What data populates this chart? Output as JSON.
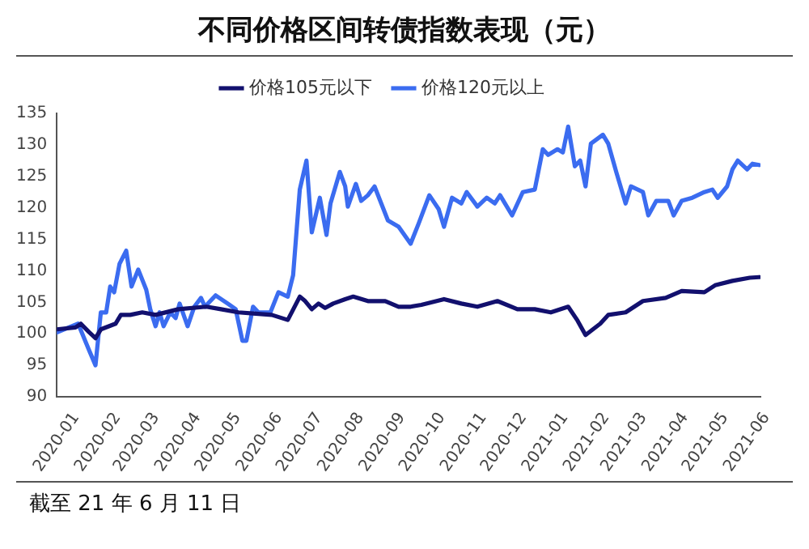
{
  "chart_data": {
    "type": "line",
    "title": "不同价格区间转债指数表现（元）",
    "annotations": [
      "截至 21 年 6 月 11 日"
    ],
    "xlim": [
      "2020-01-01",
      "2021-06-11"
    ],
    "xticks": [
      {
        "value": "2020-01-01",
        "label": "2020-01"
      },
      {
        "value": "2020-02-01",
        "label": "2020-02"
      },
      {
        "value": "2020-03-01",
        "label": "2020-03"
      },
      {
        "value": "2020-04-01",
        "label": "2020-04"
      },
      {
        "value": "2020-05-01",
        "label": "2020-05"
      },
      {
        "value": "2020-06-01",
        "label": "2020-06"
      },
      {
        "value": "2020-07-01",
        "label": "2020-07"
      },
      {
        "value": "2020-08-01",
        "label": "2020-08"
      },
      {
        "value": "2020-09-01",
        "label": "2020-09"
      },
      {
        "value": "2020-10-01",
        "label": "2020-10"
      },
      {
        "value": "2020-11-01",
        "label": "2020-11"
      },
      {
        "value": "2020-12-01",
        "label": "2020-12"
      },
      {
        "value": "2021-01-01",
        "label": "2021-01"
      },
      {
        "value": "2021-02-01",
        "label": "2021-02"
      },
      {
        "value": "2021-03-01",
        "label": "2021-03"
      },
      {
        "value": "2021-04-01",
        "label": "2021-04"
      },
      {
        "value": "2021-05-01",
        "label": "2021-05"
      },
      {
        "value": "2021-06-01",
        "label": "2021-06"
      }
    ],
    "ylim": [
      90,
      135
    ],
    "yticks": [
      90,
      95,
      100,
      105,
      110,
      115,
      120,
      125,
      130,
      135
    ],
    "grid": false,
    "legend": "top",
    "marker": "none",
    "line_style": "solid",
    "series": [
      {
        "name": "价格105元以下",
        "color": "#12106e",
        "x": [
          "2020-01-01",
          "2020-01-15",
          "2020-01-19",
          "2020-01-25",
          "2020-01-30",
          "2020-02-03",
          "2020-02-14",
          "2020-02-18",
          "2020-02-25",
          "2020-03-05",
          "2020-03-15",
          "2020-04-01",
          "2020-04-22",
          "2020-05-03",
          "2020-05-16",
          "2020-05-29",
          "2020-06-10",
          "2020-06-22",
          "2020-07-01",
          "2020-07-05",
          "2020-07-10",
          "2020-07-15",
          "2020-07-20",
          "2020-07-26",
          "2020-08-04",
          "2020-08-10",
          "2020-08-21",
          "2020-09-03",
          "2020-09-13",
          "2020-09-22",
          "2020-09-30",
          "2020-10-17",
          "2020-10-30",
          "2020-11-11",
          "2020-11-26",
          "2020-12-11",
          "2020-12-24",
          "2021-01-05",
          "2021-01-18",
          "2021-01-25",
          "2021-01-31",
          "2021-02-11",
          "2021-02-17",
          "2021-03-02",
          "2021-03-15",
          "2021-04-01",
          "2021-04-13",
          "2021-04-30",
          "2021-05-08",
          "2021-05-21",
          "2021-06-03",
          "2021-06-10"
        ],
        "values": [
          100.7,
          101,
          101.6,
          100.3,
          99.3,
          100.7,
          101.6,
          103,
          103,
          103.4,
          103,
          103.9,
          104.3,
          103.9,
          103.4,
          103.2,
          103,
          102.2,
          105.9,
          105.2,
          103.9,
          104.8,
          104.1,
          104.8,
          105.5,
          105.9,
          105.2,
          105.2,
          104.3,
          104.3,
          104.6,
          105.5,
          104.8,
          104.3,
          105.2,
          103.9,
          103.9,
          103.4,
          104.3,
          102.1,
          99.8,
          101.6,
          103,
          103.4,
          105.2,
          105.7,
          106.8,
          106.6,
          107.7,
          108.4,
          108.9,
          109
        ]
      },
      {
        "name": "价格120元以上",
        "color": "#3b6cf0",
        "x": [
          "2020-01-01",
          "2020-01-10",
          "2020-01-17",
          "2020-01-25",
          "2020-01-30",
          "2020-02-03",
          "2020-02-07",
          "2020-02-10",
          "2020-02-13",
          "2020-02-17",
          "2020-02-22",
          "2020-02-26",
          "2020-03-02",
          "2020-03-08",
          "2020-03-11",
          "2020-03-15",
          "2020-03-18",
          "2020-03-21",
          "2020-03-26",
          "2020-03-30",
          "2020-04-02",
          "2020-04-08",
          "2020-04-13",
          "2020-04-18",
          "2020-04-21",
          "2020-04-29",
          "2020-05-08",
          "2020-05-14",
          "2020-05-19",
          "2020-05-22",
          "2020-05-27",
          "2020-05-31",
          "2020-06-09",
          "2020-06-15",
          "2020-06-22",
          "2020-06-26",
          "2020-07-01",
          "2020-07-06",
          "2020-07-10",
          "2020-07-16",
          "2020-07-21",
          "2020-07-24",
          "2020-07-31",
          "2020-08-04",
          "2020-08-06",
          "2020-08-12",
          "2020-08-16",
          "2020-08-21",
          "2020-08-26",
          "2020-09-05",
          "2020-09-13",
          "2020-09-22",
          "2020-09-28",
          "2020-10-06",
          "2020-10-13",
          "2020-10-17",
          "2020-10-23",
          "2020-10-30",
          "2020-11-03",
          "2020-11-11",
          "2020-11-18",
          "2020-11-24",
          "2020-11-28",
          "2020-12-07",
          "2020-12-15",
          "2020-12-24",
          "2020-12-30",
          "2021-01-03",
          "2021-01-10",
          "2021-01-14",
          "2021-01-18",
          "2021-01-23",
          "2021-01-27",
          "2021-01-31",
          "2021-02-04",
          "2021-02-13",
          "2021-02-17",
          "2021-02-23",
          "2021-03-02",
          "2021-03-06",
          "2021-03-15",
          "2021-03-19",
          "2021-03-25",
          "2021-04-03",
          "2021-04-07",
          "2021-04-13",
          "2021-04-21",
          "2021-04-30",
          "2021-05-06",
          "2021-05-10",
          "2021-05-17",
          "2021-05-21",
          "2021-05-25",
          "2021-06-01",
          "2021-06-05",
          "2021-06-10"
        ],
        "values": [
          100.2,
          101,
          101.6,
          97.5,
          95,
          103.4,
          103.4,
          107.5,
          106.6,
          111.1,
          113.2,
          107.5,
          110.2,
          107,
          103.9,
          101.2,
          103.4,
          101.2,
          103.4,
          102.5,
          104.8,
          101.2,
          104.3,
          105.7,
          104.3,
          106.1,
          104.8,
          103.9,
          98.9,
          98.9,
          104.3,
          103.4,
          103.4,
          106.6,
          105.9,
          109.3,
          122.9,
          127.5,
          116.1,
          121.6,
          115.7,
          120.7,
          125.7,
          123.4,
          120.2,
          123.8,
          121.1,
          122,
          123.4,
          118,
          117,
          114.3,
          117.5,
          122,
          119.8,
          117,
          121.6,
          120.7,
          122.5,
          120.2,
          121.6,
          120.7,
          122,
          118.8,
          122.5,
          122.9,
          129.3,
          128.4,
          129.3,
          128.8,
          132.9,
          126.6,
          127.5,
          123.4,
          130.2,
          131.6,
          130.2,
          125.7,
          120.7,
          123.4,
          122.5,
          118.8,
          121.1,
          121.1,
          118.8,
          121.1,
          121.6,
          122.5,
          122.9,
          121.6,
          123.4,
          126.1,
          127.5,
          126.1,
          127,
          126.8
        ]
      }
    ]
  }
}
